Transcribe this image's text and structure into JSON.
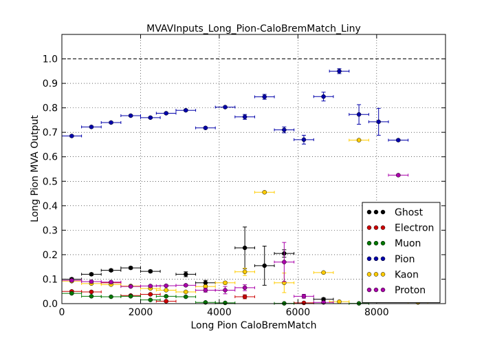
{
  "chart_data": {
    "type": "scatter",
    "title": "MVAVInputs_Long_Pion-CaloBremMatch_Liny",
    "xlabel": "Long Pion CaloBremMatch",
    "ylabel": "Long Pion MVA Output",
    "xlim": [
      0,
      9750
    ],
    "ylim": [
      0.0,
      1.1
    ],
    "xticks": [
      "0",
      "2000",
      "4000",
      "6000",
      "8000"
    ],
    "yticks": [
      "0.0",
      "0.1",
      "0.2",
      "0.3",
      "0.4",
      "0.5",
      "0.6",
      "0.7",
      "0.8",
      "0.9",
      "1.0"
    ],
    "grid": true,
    "reference_line_y": 1.0,
    "legend_position": "lower-right",
    "series": [
      {
        "name": "Ghost",
        "color": "#000000",
        "points": [
          {
            "x": 250,
            "y": 0.1,
            "xerr": 250,
            "yerr": 0.005
          },
          {
            "x": 750,
            "y": 0.12,
            "xerr": 250,
            "yerr": 0.005
          },
          {
            "x": 1250,
            "y": 0.136,
            "xerr": 250,
            "yerr": 0.005
          },
          {
            "x": 1750,
            "y": 0.146,
            "xerr": 250,
            "yerr": 0.005
          },
          {
            "x": 2250,
            "y": 0.132,
            "xerr": 250,
            "yerr": 0.005
          },
          {
            "x": 3150,
            "y": 0.12,
            "xerr": 250,
            "yerr": 0.01
          },
          {
            "x": 3650,
            "y": 0.085,
            "xerr": 250,
            "yerr": 0.01
          },
          {
            "x": 4650,
            "y": 0.228,
            "xerr": 250,
            "yerr": 0.085
          },
          {
            "x": 5150,
            "y": 0.155,
            "xerr": 250,
            "yerr": 0.08
          },
          {
            "x": 5650,
            "y": 0.205,
            "xerr": 250,
            "yerr": 0.015
          },
          {
            "x": 6650,
            "y": 0.018,
            "xerr": 250,
            "yerr": 0.005
          }
        ]
      },
      {
        "name": "Electron",
        "color": "#cc0000",
        "points": [
          {
            "x": 250,
            "y": 0.05,
            "xerr": 250,
            "yerr": 0.004
          },
          {
            "x": 750,
            "y": 0.048,
            "xerr": 250,
            "yerr": 0.004
          },
          {
            "x": 1250,
            "y": 0.085,
            "xerr": 250,
            "yerr": 0.004
          },
          {
            "x": 1750,
            "y": 0.033,
            "xerr": 250,
            "yerr": 0.004
          },
          {
            "x": 2250,
            "y": 0.038,
            "xerr": 250,
            "yerr": 0.004
          },
          {
            "x": 2650,
            "y": 0.01,
            "xerr": 250,
            "yerr": 0.004
          },
          {
            "x": 4650,
            "y": 0.028,
            "xerr": 250,
            "yerr": 0.008
          },
          {
            "x": 6150,
            "y": 0.003,
            "xerr": 250,
            "yerr": 0.003
          }
        ]
      },
      {
        "name": "Muon",
        "color": "#007700",
        "points": [
          {
            "x": 250,
            "y": 0.042,
            "xerr": 250,
            "yerr": 0.003
          },
          {
            "x": 750,
            "y": 0.03,
            "xerr": 250,
            "yerr": 0.003
          },
          {
            "x": 1250,
            "y": 0.028,
            "xerr": 250,
            "yerr": 0.003
          },
          {
            "x": 1750,
            "y": 0.03,
            "xerr": 250,
            "yerr": 0.003
          },
          {
            "x": 2250,
            "y": 0.015,
            "xerr": 250,
            "yerr": 0.003
          },
          {
            "x": 2650,
            "y": 0.03,
            "xerr": 250,
            "yerr": 0.003
          },
          {
            "x": 3150,
            "y": 0.028,
            "xerr": 250,
            "yerr": 0.003
          },
          {
            "x": 3650,
            "y": 0.005,
            "xerr": 250,
            "yerr": 0.003
          },
          {
            "x": 4150,
            "y": 0.003,
            "xerr": 250,
            "yerr": 0.003
          },
          {
            "x": 5650,
            "y": 0.001,
            "xerr": 250,
            "yerr": 0.001
          },
          {
            "x": 7550,
            "y": 0.001,
            "xerr": 250,
            "yerr": 0.001
          }
        ]
      },
      {
        "name": "Pion",
        "color": "#0000aa",
        "points": [
          {
            "x": 250,
            "y": 0.685,
            "xerr": 250,
            "yerr": 0.004
          },
          {
            "x": 750,
            "y": 0.722,
            "xerr": 250,
            "yerr": 0.004
          },
          {
            "x": 1250,
            "y": 0.74,
            "xerr": 250,
            "yerr": 0.004
          },
          {
            "x": 1750,
            "y": 0.768,
            "xerr": 250,
            "yerr": 0.004
          },
          {
            "x": 2250,
            "y": 0.76,
            "xerr": 250,
            "yerr": 0.004
          },
          {
            "x": 2650,
            "y": 0.778,
            "xerr": 250,
            "yerr": 0.004
          },
          {
            "x": 3150,
            "y": 0.79,
            "xerr": 250,
            "yerr": 0.004
          },
          {
            "x": 3650,
            "y": 0.718,
            "xerr": 250,
            "yerr": 0.004
          },
          {
            "x": 4150,
            "y": 0.803,
            "xerr": 250,
            "yerr": 0.004
          },
          {
            "x": 4650,
            "y": 0.763,
            "xerr": 250,
            "yerr": 0.01
          },
          {
            "x": 5150,
            "y": 0.845,
            "xerr": 250,
            "yerr": 0.01
          },
          {
            "x": 5650,
            "y": 0.71,
            "xerr": 250,
            "yerr": 0.012
          },
          {
            "x": 6150,
            "y": 0.67,
            "xerr": 250,
            "yerr": 0.018
          },
          {
            "x": 6650,
            "y": 0.846,
            "xerr": 250,
            "yerr": 0.018
          },
          {
            "x": 7050,
            "y": 0.95,
            "xerr": 250,
            "yerr": 0.01
          },
          {
            "x": 7550,
            "y": 0.773,
            "xerr": 250,
            "yerr": 0.04
          },
          {
            "x": 8050,
            "y": 0.743,
            "xerr": 250,
            "yerr": 0.055
          },
          {
            "x": 8550,
            "y": 0.668,
            "xerr": 250,
            "yerr": 0.004
          }
        ]
      },
      {
        "name": "Kaon",
        "color": "#ffcc00",
        "points": [
          {
            "x": 250,
            "y": 0.092,
            "xerr": 250,
            "yerr": 0.004
          },
          {
            "x": 750,
            "y": 0.082,
            "xerr": 250,
            "yerr": 0.004
          },
          {
            "x": 1250,
            "y": 0.078,
            "xerr": 250,
            "yerr": 0.004
          },
          {
            "x": 1750,
            "y": 0.072,
            "xerr": 250,
            "yerr": 0.004
          },
          {
            "x": 2250,
            "y": 0.062,
            "xerr": 250,
            "yerr": 0.004
          },
          {
            "x": 2650,
            "y": 0.055,
            "xerr": 250,
            "yerr": 0.004
          },
          {
            "x": 3150,
            "y": 0.048,
            "xerr": 250,
            "yerr": 0.004
          },
          {
            "x": 3650,
            "y": 0.07,
            "xerr": 250,
            "yerr": 0.006
          },
          {
            "x": 4150,
            "y": 0.085,
            "xerr": 250,
            "yerr": 0.006
          },
          {
            "x": 4650,
            "y": 0.13,
            "xerr": 250,
            "yerr": 0.015
          },
          {
            "x": 5150,
            "y": 0.455,
            "xerr": 250,
            "yerr": 0.004
          },
          {
            "x": 5650,
            "y": 0.085,
            "xerr": 250,
            "yerr": 0.04
          },
          {
            "x": 6650,
            "y": 0.127,
            "xerr": 250,
            "yerr": 0.004
          },
          {
            "x": 7050,
            "y": 0.008,
            "xerr": 250,
            "yerr": 0.003
          },
          {
            "x": 7550,
            "y": 0.668,
            "xerr": 250,
            "yerr": 0.004
          },
          {
            "x": 9050,
            "y": 0.005,
            "xerr": 250,
            "yerr": 0.003
          }
        ]
      },
      {
        "name": "Proton",
        "color": "#aa00aa",
        "points": [
          {
            "x": 250,
            "y": 0.095,
            "xerr": 250,
            "yerr": 0.004
          },
          {
            "x": 750,
            "y": 0.09,
            "xerr": 250,
            "yerr": 0.004
          },
          {
            "x": 1250,
            "y": 0.088,
            "xerr": 250,
            "yerr": 0.004
          },
          {
            "x": 1750,
            "y": 0.07,
            "xerr": 250,
            "yerr": 0.004
          },
          {
            "x": 2250,
            "y": 0.072,
            "xerr": 250,
            "yerr": 0.004
          },
          {
            "x": 2650,
            "y": 0.073,
            "xerr": 250,
            "yerr": 0.004
          },
          {
            "x": 3150,
            "y": 0.075,
            "xerr": 250,
            "yerr": 0.004
          },
          {
            "x": 3650,
            "y": 0.055,
            "xerr": 250,
            "yerr": 0.008
          },
          {
            "x": 4150,
            "y": 0.055,
            "xerr": 250,
            "yerr": 0.015
          },
          {
            "x": 4650,
            "y": 0.065,
            "xerr": 250,
            "yerr": 0.012
          },
          {
            "x": 5650,
            "y": 0.17,
            "xerr": 250,
            "yerr": 0.08
          },
          {
            "x": 6150,
            "y": 0.03,
            "xerr": 250,
            "yerr": 0.008
          },
          {
            "x": 6650,
            "y": 0.005,
            "xerr": 250,
            "yerr": 0.003
          },
          {
            "x": 8550,
            "y": 0.525,
            "xerr": 250,
            "yerr": 0.004
          }
        ]
      }
    ]
  }
}
